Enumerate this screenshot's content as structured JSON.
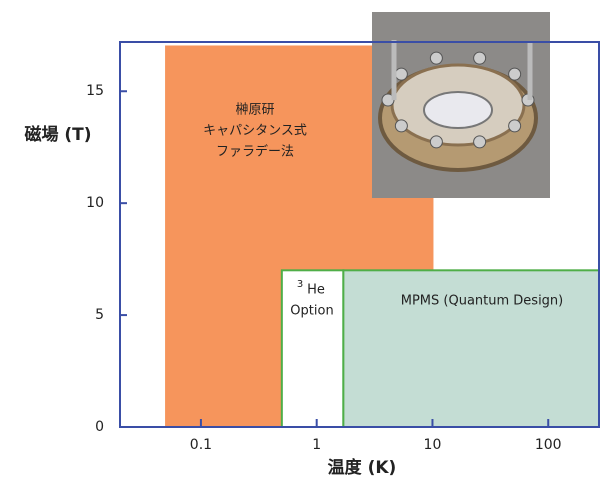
{
  "chart_data": {
    "type": "range",
    "xlabel": "温度 (K)",
    "ylabel": "磁場 (T)",
    "xscale": "log",
    "xlim": [
      0.02,
      280
    ],
    "ylim": [
      0,
      17.2
    ],
    "xticks": [
      0.1,
      1,
      10,
      100
    ],
    "yticks": [
      0,
      5,
      10,
      15
    ],
    "axis_color": "#3a4ea6",
    "regions": [
      {
        "label": [
          "榊原研",
          "キャパシタンス式",
          "ファラデー法"
        ],
        "x": [
          0.05,
          10
        ],
        "y": [
          0,
          17
        ],
        "color": "#f6955c",
        "edge": "#f6955c"
      },
      {
        "label": [
          "He",
          "Option"
        ],
        "label_sup": "3",
        "x": [
          0.5,
          1.7
        ],
        "y": [
          0,
          7
        ],
        "color": "#ffffff",
        "edge": "#4fae48"
      },
      {
        "label": [
          "MPMS (Quantum Design)"
        ],
        "x": [
          1.7,
          280
        ],
        "y": [
          0,
          7
        ],
        "color": "#c4ddd4",
        "edge": "#4fae48"
      }
    ]
  }
}
